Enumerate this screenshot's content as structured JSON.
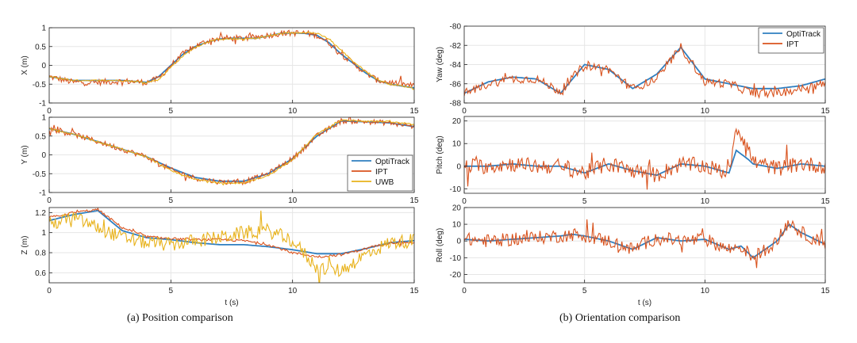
{
  "chart_data": [
    {
      "id": "x",
      "panel": "a",
      "type": "line",
      "title": "",
      "xlabel": "",
      "ylabel": "X (m)",
      "xlim": [
        0,
        15
      ],
      "ylim": [
        -1,
        1
      ],
      "xticks": [
        "0",
        "5",
        "10",
        "15"
      ],
      "yticks": [
        "-1",
        "-0.5",
        "0",
        "0.5",
        "1"
      ],
      "grid": true,
      "series": [
        {
          "name": "OptiTrack",
          "color": "#2f7fc1",
          "noise": 0,
          "x": [
            0,
            1,
            2,
            3,
            4,
            4.5,
            5,
            5.5,
            6,
            6.5,
            7,
            7.5,
            8,
            8.5,
            9,
            9.5,
            10,
            10.5,
            11,
            11.5,
            12,
            12.5,
            13,
            13.5,
            14,
            14.5,
            15
          ],
          "y": [
            -0.3,
            -0.4,
            -0.4,
            -0.4,
            -0.45,
            -0.3,
            0.0,
            0.3,
            0.5,
            0.62,
            0.7,
            0.72,
            0.72,
            0.72,
            0.78,
            0.85,
            0.86,
            0.85,
            0.8,
            0.6,
            0.3,
            0.05,
            -0.2,
            -0.4,
            -0.5,
            -0.55,
            -0.6
          ]
        },
        {
          "name": "IPT",
          "color": "#d9531e",
          "noise": 0.08,
          "x": [
            0,
            1,
            2,
            3,
            4,
            4.5,
            5,
            5.5,
            6,
            6.5,
            7,
            7.5,
            8,
            8.5,
            9,
            9.5,
            10,
            10.5,
            11,
            11.5,
            12,
            12.5,
            13,
            13.5,
            14,
            14.5,
            15
          ],
          "y": [
            -0.3,
            -0.45,
            -0.45,
            -0.42,
            -0.45,
            -0.35,
            0.0,
            0.3,
            0.5,
            0.65,
            0.72,
            0.72,
            0.72,
            0.75,
            0.8,
            0.85,
            0.86,
            0.86,
            0.8,
            0.6,
            0.3,
            0.05,
            -0.2,
            -0.4,
            -0.45,
            -0.5,
            -0.55
          ]
        },
        {
          "name": "UWB",
          "color": "#e8b21b",
          "noise": 0.02,
          "x": [
            0,
            1,
            2,
            3,
            4,
            4.5,
            5,
            5.5,
            6,
            6.5,
            7,
            7.5,
            8,
            8.5,
            9,
            9.5,
            10,
            10.5,
            11,
            11.5,
            12,
            12.5,
            13,
            13.5,
            14,
            14.5,
            15
          ],
          "y": [
            -0.3,
            -0.4,
            -0.4,
            -0.4,
            -0.45,
            -0.38,
            -0.05,
            0.25,
            0.48,
            0.62,
            0.7,
            0.7,
            0.7,
            0.72,
            0.78,
            0.84,
            0.86,
            0.88,
            0.85,
            0.7,
            0.4,
            0.1,
            -0.15,
            -0.38,
            -0.5,
            -0.55,
            -0.6
          ]
        }
      ]
    },
    {
      "id": "y",
      "panel": "a",
      "type": "line",
      "title": "",
      "xlabel": "",
      "ylabel": "Y (m)",
      "xlim": [
        0,
        15
      ],
      "ylim": [
        -1,
        1
      ],
      "xticks": [
        "0",
        "5",
        "10",
        "15"
      ],
      "yticks": [
        "-1",
        "-0.5",
        "0",
        "0.5",
        "1"
      ],
      "grid": true,
      "legend": {
        "placement": "bottom-right",
        "entries": [
          "OptiTrack",
          "IPT",
          "UWB"
        ]
      },
      "series": [
        {
          "name": "OptiTrack",
          "color": "#2f7fc1",
          "noise": 0,
          "x": [
            0,
            1,
            2,
            3,
            4,
            5,
            6,
            7,
            8,
            9,
            10,
            11,
            12,
            13,
            14,
            15
          ],
          "y": [
            0.7,
            0.55,
            0.35,
            0.15,
            -0.05,
            -0.35,
            -0.6,
            -0.7,
            -0.7,
            -0.5,
            -0.1,
            0.5,
            0.9,
            0.88,
            0.85,
            0.75
          ]
        },
        {
          "name": "IPT",
          "color": "#d9531e",
          "noise": 0.07,
          "x": [
            0,
            1,
            2,
            3,
            4,
            5,
            6,
            7,
            8,
            9,
            10,
            11,
            12,
            13,
            14,
            15
          ],
          "y": [
            0.7,
            0.55,
            0.35,
            0.15,
            -0.05,
            -0.4,
            -0.62,
            -0.72,
            -0.72,
            -0.5,
            -0.1,
            0.5,
            0.9,
            0.88,
            0.85,
            0.75
          ]
        },
        {
          "name": "UWB",
          "color": "#e8b21b",
          "noise": 0.02,
          "x": [
            0,
            1,
            2,
            3,
            4,
            5,
            6,
            7,
            8,
            9,
            10,
            11,
            12,
            13,
            14,
            15
          ],
          "y": [
            0.7,
            0.55,
            0.35,
            0.15,
            -0.05,
            -0.42,
            -0.65,
            -0.75,
            -0.75,
            -0.55,
            -0.12,
            0.55,
            0.92,
            0.9,
            0.88,
            0.8
          ]
        }
      ]
    },
    {
      "id": "z",
      "panel": "a",
      "type": "line",
      "title": "",
      "xlabel": "t (s)",
      "ylabel": "Z (m)",
      "xlim": [
        0,
        15
      ],
      "ylim": [
        0.5,
        1.25
      ],
      "xticks": [
        "0",
        "5",
        "10",
        "15"
      ],
      "yticks": [
        "0.6",
        "0.8",
        "1",
        "1.2"
      ],
      "ytick_values": [
        0.6,
        0.8,
        1,
        1.2
      ],
      "grid": true,
      "series": [
        {
          "name": "OptiTrack",
          "color": "#2f7fc1",
          "noise": 0,
          "x": [
            0,
            1,
            2,
            3,
            4,
            5,
            6,
            7,
            8,
            9,
            10,
            11,
            12,
            13,
            14,
            15
          ],
          "y": [
            1.12,
            1.18,
            1.22,
            1.02,
            0.95,
            0.93,
            0.9,
            0.88,
            0.88,
            0.86,
            0.83,
            0.79,
            0.79,
            0.84,
            0.9,
            0.92
          ]
        },
        {
          "name": "IPT",
          "color": "#d9531e",
          "noise": 0.012,
          "x": [
            0,
            1,
            2,
            3,
            4,
            5,
            6,
            7,
            8,
            9,
            10,
            11,
            12,
            13,
            14,
            15
          ],
          "y": [
            1.15,
            1.2,
            1.23,
            1.05,
            0.96,
            0.94,
            0.93,
            0.93,
            0.92,
            0.88,
            0.8,
            0.76,
            0.78,
            0.84,
            0.9,
            0.9
          ]
        },
        {
          "name": "UWB",
          "color": "#e8b21b",
          "noise": 0.07,
          "x": [
            0,
            1,
            2,
            3,
            4,
            5,
            6,
            7,
            8,
            9,
            10,
            11,
            12,
            13,
            14,
            15
          ],
          "y": [
            1.08,
            1.15,
            1.05,
            0.95,
            0.9,
            0.88,
            0.92,
            0.95,
            1.0,
            1.02,
            0.92,
            0.65,
            0.62,
            0.78,
            0.9,
            0.92
          ]
        }
      ]
    },
    {
      "id": "yaw",
      "panel": "b",
      "type": "line",
      "title": "",
      "xlabel": "",
      "ylabel": "Yaw (deg)",
      "xlim": [
        0,
        15
      ],
      "ylim": [
        -88,
        -80
      ],
      "xticks": [
        "0",
        "5",
        "10",
        "15"
      ],
      "yticks": [
        "-88",
        "-86",
        "-84",
        "-82",
        "-80"
      ],
      "grid": true,
      "legend": {
        "placement": "top-right",
        "entries": [
          "OptiTrack",
          "IPT"
        ]
      },
      "series": [
        {
          "name": "OptiTrack",
          "color": "#2f7fc1",
          "noise": 0,
          "x": [
            0,
            1,
            2,
            3,
            4,
            5,
            6,
            7,
            8,
            9,
            10,
            11,
            12,
            13,
            14,
            15
          ],
          "y": [
            -87,
            -85.8,
            -85.3,
            -85.5,
            -87,
            -84,
            -84.5,
            -86.5,
            -85,
            -82.2,
            -85.5,
            -86,
            -86.5,
            -86.5,
            -86.2,
            -85.5
          ]
        },
        {
          "name": "IPT",
          "color": "#d9531e",
          "noise": 0.45,
          "x": [
            0,
            1,
            2,
            3,
            4,
            5,
            6,
            7,
            8,
            9,
            10,
            11,
            12,
            13,
            14,
            15
          ],
          "y": [
            -87,
            -86,
            -85.5,
            -85.5,
            -86.8,
            -84,
            -84.5,
            -86.5,
            -85.5,
            -82.2,
            -85.8,
            -86,
            -87,
            -87,
            -86.5,
            -86
          ]
        }
      ]
    },
    {
      "id": "pitch",
      "panel": "b",
      "type": "line",
      "title": "",
      "xlabel": "",
      "ylabel": "Pitch (deg)",
      "xlim": [
        0,
        15
      ],
      "ylim": [
        -12,
        22
      ],
      "xticks": [
        "0",
        "5",
        "10",
        "15"
      ],
      "yticks": [
        "-10",
        "0",
        "10",
        "20"
      ],
      "ytick_values": [
        -10,
        0,
        10,
        20
      ],
      "grid": true,
      "series": [
        {
          "name": "OptiTrack",
          "color": "#2f7fc1",
          "noise": 0,
          "x": [
            0,
            1,
            2,
            3,
            4,
            5,
            6,
            7,
            8,
            9,
            10,
            11,
            11.3,
            11.8,
            12,
            13,
            14,
            15
          ],
          "y": [
            0,
            0,
            1,
            0,
            0,
            -3,
            1,
            -2,
            -4,
            1,
            0,
            -3,
            7,
            3,
            1,
            -1,
            1,
            0
          ]
        },
        {
          "name": "IPT",
          "color": "#d9531e",
          "noise": 3.5,
          "x": [
            0,
            1,
            2,
            3,
            4,
            5,
            6,
            7,
            8,
            9,
            10,
            11,
            11.3,
            11.8,
            12,
            13,
            14,
            15
          ],
          "y": [
            0,
            0,
            1,
            0,
            0,
            -3,
            1,
            -2,
            -4,
            1,
            0,
            -3,
            18,
            8,
            2,
            -1,
            1,
            0
          ]
        }
      ]
    },
    {
      "id": "roll",
      "panel": "b",
      "type": "line",
      "title": "",
      "xlabel": "t (s)",
      "ylabel": "Roll (deg)",
      "xlim": [
        0,
        15
      ],
      "ylim": [
        -25,
        20
      ],
      "xticks": [
        "0",
        "5",
        "10",
        "15"
      ],
      "yticks": [
        "-20",
        "-10",
        "0",
        "10",
        "20"
      ],
      "ytick_values": [
        -20,
        -10,
        0,
        10,
        20
      ],
      "grid": true,
      "series": [
        {
          "name": "OptiTrack",
          "color": "#2f7fc1",
          "noise": 0,
          "x": [
            0,
            1,
            2,
            3,
            4,
            4.5,
            5,
            6,
            7,
            8,
            9,
            10,
            11,
            11.5,
            12,
            13,
            13.5,
            14,
            15
          ],
          "y": [
            1,
            0,
            1,
            2,
            3,
            4,
            3,
            0,
            -5,
            2,
            0,
            1,
            -5,
            -3,
            -10,
            0,
            10,
            5,
            -2
          ]
        },
        {
          "name": "IPT",
          "color": "#d9531e",
          "noise": 4,
          "x": [
            0,
            1,
            2,
            3,
            4,
            4.5,
            5,
            6,
            7,
            8,
            9,
            10,
            11,
            11.5,
            12,
            13,
            13.5,
            14,
            15
          ],
          "y": [
            1,
            0,
            1,
            2,
            3,
            4,
            3,
            0,
            -5,
            2,
            0,
            1,
            -5,
            -3,
            -10,
            0,
            12,
            5,
            -2
          ]
        }
      ]
    }
  ],
  "captions": {
    "a": "(a) Position comparison",
    "b": "(b) Orientation comparison"
  }
}
